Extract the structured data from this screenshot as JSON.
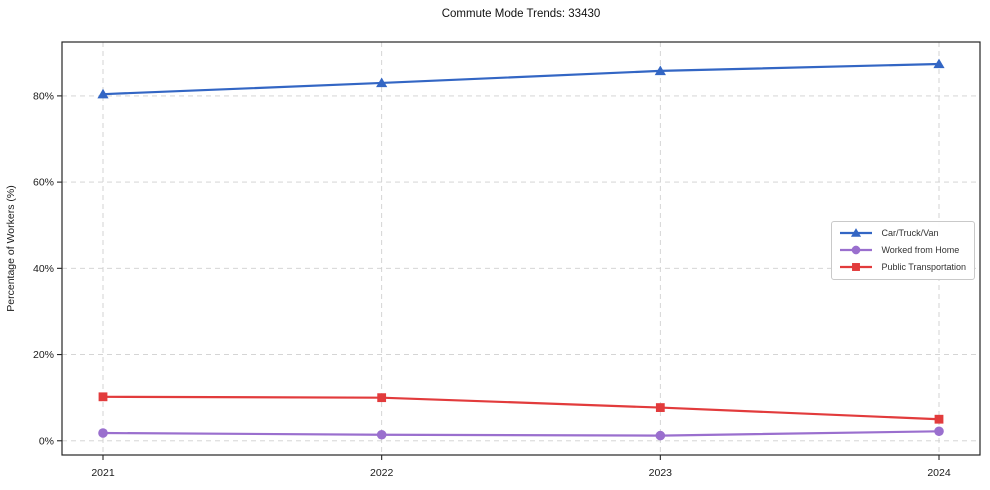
{
  "figure": {
    "background": "#ffffff",
    "spine_color": "#262626",
    "tick_label_color": "#1a1a1a"
  },
  "chart_data": {
    "type": "line",
    "title": "Commute Mode Trends: 33430",
    "xlabel": "",
    "ylabel": "Percentage of Workers (%)",
    "categories": [
      "2021",
      "2022",
      "2023",
      "2024"
    ],
    "series": [
      {
        "name": "Car/Truck/Van",
        "color": "#3366c4",
        "marker": "triangle",
        "values": [
          80.4,
          83.0,
          85.8,
          87.4
        ]
      },
      {
        "name": "Worked from Home",
        "color": "#9a6fce",
        "marker": "circle",
        "values": [
          1.8,
          1.4,
          1.2,
          2.2
        ]
      },
      {
        "name": "Public Transportation",
        "color": "#e23b3c",
        "marker": "square",
        "values": [
          10.2,
          10.0,
          7.7,
          5.0
        ]
      }
    ],
    "ylim": [
      -3.3,
      92.5
    ],
    "yticks": [
      0,
      20,
      40,
      60,
      80
    ],
    "ytick_labels": [
      "0%",
      "20%",
      "40%",
      "60%",
      "80%"
    ],
    "grid": true,
    "grid_color": "#cfcfcf",
    "legend_position": "center-right"
  }
}
